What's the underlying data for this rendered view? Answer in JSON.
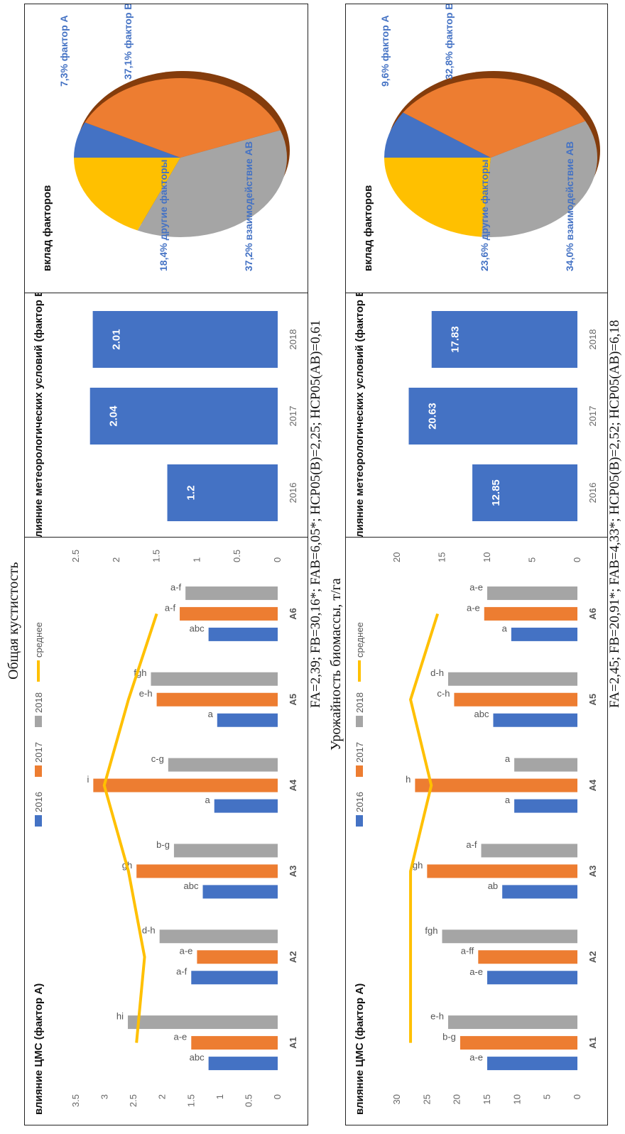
{
  "section1": {
    "title": "Общая кустистость",
    "footnote": "FA=2,39; FB=30,16*; FAB=6,05*; НСР05(B)=2,25; НСР05(AB)=0,61"
  },
  "section2": {
    "title": "Урожайность биомассы, т/га",
    "footnote": "FA=2,45; FB=20,91*; FAB=4,33*; НСР05(B)=2,52; НСР05(AB)=6,18"
  },
  "colors": {
    "2016": "#4472C4",
    "2017": "#ED7D31",
    "2018": "#A5A5A5",
    "mean": "#FFC000",
    "pie_other": "#FFC000",
    "pie_A": "#4472C4",
    "pie_B": "#ED7D31",
    "pie_AB": "#A5A5A5",
    "pie_dark": "#843C0C"
  },
  "chart_data": [
    {
      "type": "bar",
      "title": "влияние ЦМС (фактор А)",
      "categories": [
        "A1",
        "A2",
        "A3",
        "A4",
        "A5",
        "A6"
      ],
      "ylim": [
        0,
        3.5
      ],
      "yticks": [
        "0",
        "0.5",
        "1",
        "1.5",
        "2",
        "2.5",
        "3",
        "3.5"
      ],
      "y2lim": [
        0,
        2.5
      ],
      "y2ticks": [
        "0",
        "0.5",
        "1",
        "1.5",
        "2",
        "2.5"
      ],
      "series": [
        {
          "name": "2016",
          "values": [
            1.2,
            1.5,
            1.3,
            1.1,
            1.05,
            1.2
          ]
        },
        {
          "name": "2017",
          "values": [
            1.5,
            1.4,
            2.45,
            3.2,
            2.1,
            1.7
          ]
        },
        {
          "name": "2018",
          "values": [
            2.6,
            2.05,
            1.8,
            1.9,
            2.2,
            1.6
          ]
        },
        {
          "name": "среднее",
          "axis": "secondary",
          "values": [
            1.75,
            1.65,
            1.85,
            2.15,
            1.85,
            1.5
          ]
        }
      ],
      "labels": [
        [
          "abc",
          "a-f",
          "abc",
          "a",
          "a",
          "abc"
        ],
        [
          "a-e",
          "a-e",
          "gh",
          "i",
          "e-h",
          "a-f"
        ],
        [
          "hi",
          "d-h",
          "b-g",
          "c-g",
          "fgh",
          "a-f"
        ]
      ]
    },
    {
      "type": "bar",
      "title": "влияние метеорологических условий (фактор В)",
      "categories": [
        "2016",
        "2017",
        "2018"
      ],
      "values": [
        1.2,
        2.04,
        2.01
      ],
      "value_labels": [
        "1.2",
        "2.04",
        "2.01"
      ]
    },
    {
      "type": "pie",
      "title": "вклад факторов",
      "slices": [
        {
          "label": "7,3% фактор А",
          "value": 7.3
        },
        {
          "label": "37,1% фактор В",
          "value": 37.1
        },
        {
          "label": "37,2% взаимодействие АВ",
          "value": 37.2
        },
        {
          "label": "18,4% другие факторы",
          "value": 18.4
        }
      ]
    },
    {
      "type": "bar",
      "title": "влияние ЦМС (фактор А)",
      "categories": [
        "A1",
        "A2",
        "A3",
        "A4",
        "A5",
        "A6"
      ],
      "ylim": [
        0,
        30
      ],
      "yticks": [
        "0",
        "5",
        "10",
        "15",
        "20",
        "25",
        "30"
      ],
      "y2lim": [
        0,
        20
      ],
      "y2ticks": [
        "0",
        "5",
        "10",
        "15",
        "20"
      ],
      "series": [
        {
          "name": "2016",
          "values": [
            15,
            15,
            12.5,
            10.5,
            14,
            11
          ]
        },
        {
          "name": "2017",
          "values": [
            19.5,
            16.5,
            25,
            27,
            20.5,
            15.5
          ]
        },
        {
          "name": "2018",
          "values": [
            21.5,
            22.5,
            16,
            10.5,
            21.5,
            15
          ]
        },
        {
          "name": "среднее",
          "axis": "secondary",
          "values": [
            18.5,
            18.5,
            18.5,
            16.2,
            18.5,
            15.5
          ]
        }
      ],
      "labels": [
        [
          "a-e",
          "a-e",
          "ab",
          "a",
          "abc",
          "a"
        ],
        [
          "b-g",
          "a-ff",
          "gh",
          "h",
          "c-h",
          "a-e"
        ],
        [
          "e-h",
          "fgh",
          "a-f",
          "a",
          "d-h",
          "a-e"
        ]
      ]
    },
    {
      "type": "bar",
      "title": "влияние метеорологических условий (фактор В)",
      "categories": [
        "2016",
        "2017",
        "2018"
      ],
      "values": [
        12.85,
        20.63,
        17.83
      ],
      "value_labels": [
        "12.85",
        "20.63",
        "17.83"
      ]
    },
    {
      "type": "pie",
      "title": "вклад факторов",
      "slices": [
        {
          "label": "9,6% фактор А",
          "value": 9.6
        },
        {
          "label": "32,8% фактор В",
          "value": 32.8
        },
        {
          "label": "34,0% взаимодействие АВ",
          "value": 34.0
        },
        {
          "label": "23,6% другие факторы",
          "value": 23.6
        }
      ]
    }
  ]
}
